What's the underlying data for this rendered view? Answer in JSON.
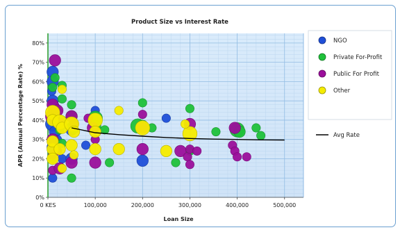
{
  "chart_data": {
    "type": "scatter",
    "subtype": "bubble",
    "title": "Product Size vs Interest Rate",
    "xlabel": "Loan Size",
    "ylabel": "APR (Annual Percentage Rate) %",
    "xlim": [
      0,
      540000
    ],
    "ylim": [
      0,
      0.85
    ],
    "x_ticks": [
      {
        "value": 0,
        "label": "0 KES"
      },
      {
        "value": 100000,
        "label": "100,000"
      },
      {
        "value": 200000,
        "label": "200,000"
      },
      {
        "value": 300000,
        "label": "300,000"
      },
      {
        "value": 400000,
        "label": "400,000"
      },
      {
        "value": 500000,
        "label": "500,000"
      }
    ],
    "y_ticks": [
      {
        "value": 0,
        "label": "0%"
      },
      {
        "value": 0.1,
        "label": "10%"
      },
      {
        "value": 0.2,
        "label": "20%"
      },
      {
        "value": 0.3,
        "label": "30%"
      },
      {
        "value": 0.4,
        "label": "40%"
      },
      {
        "value": 0.5,
        "label": "50%"
      },
      {
        "value": 0.6,
        "label": "60%"
      },
      {
        "value": 0.7,
        "label": "70%"
      },
      {
        "value": 0.8,
        "label": "80%"
      }
    ],
    "grid": true,
    "legend_position": "right",
    "series": [
      {
        "name": "NGO",
        "kind": "bubble",
        "color": "#1f4fd8",
        "points": [
          [
            10000,
            0.65,
            3
          ],
          [
            10000,
            0.6,
            3
          ],
          [
            8000,
            0.55,
            2
          ],
          [
            10000,
            0.5,
            3
          ],
          [
            12000,
            0.47,
            3
          ],
          [
            15000,
            0.43,
            3
          ],
          [
            20000,
            0.4,
            2
          ],
          [
            25000,
            0.37,
            3
          ],
          [
            10000,
            0.38,
            4
          ],
          [
            15000,
            0.34,
            3
          ],
          [
            10000,
            0.26,
            3
          ],
          [
            20000,
            0.3,
            2
          ],
          [
            10000,
            0.1,
            2
          ],
          [
            50000,
            0.35,
            3
          ],
          [
            55000,
            0.38,
            2
          ],
          [
            80000,
            0.27,
            2
          ],
          [
            100000,
            0.45,
            2
          ],
          [
            200000,
            0.19,
            3
          ],
          [
            250000,
            0.41,
            2
          ],
          [
            30000,
            0.2,
            2
          ],
          [
            50000,
            0.2,
            3
          ]
        ]
      },
      {
        "name": "Private For-Profit",
        "kind": "bubble",
        "color": "#1fc13a",
        "points": [
          [
            15000,
            0.62,
            2
          ],
          [
            10000,
            0.57,
            2
          ],
          [
            30000,
            0.58,
            2
          ],
          [
            30000,
            0.51,
            2
          ],
          [
            50000,
            0.48,
            2
          ],
          [
            20000,
            0.45,
            2
          ],
          [
            50000,
            0.42,
            3
          ],
          [
            30000,
            0.4,
            2
          ],
          [
            25000,
            0.35,
            2
          ],
          [
            15000,
            0.29,
            2
          ],
          [
            50000,
            0.37,
            2
          ],
          [
            55000,
            0.35,
            2
          ],
          [
            100000,
            0.41,
            4
          ],
          [
            100000,
            0.37,
            3
          ],
          [
            120000,
            0.35,
            2
          ],
          [
            130000,
            0.18,
            2
          ],
          [
            190000,
            0.37,
            4
          ],
          [
            200000,
            0.37,
            3
          ],
          [
            200000,
            0.49,
            2
          ],
          [
            220000,
            0.36,
            2
          ],
          [
            270000,
            0.18,
            2
          ],
          [
            300000,
            0.46,
            2
          ],
          [
            300000,
            0.24,
            2
          ],
          [
            355000,
            0.34,
            2
          ],
          [
            400000,
            0.35,
            4
          ],
          [
            405000,
            0.34,
            3
          ],
          [
            440000,
            0.36,
            2
          ],
          [
            450000,
            0.32,
            2
          ],
          [
            10000,
            0.2,
            2
          ],
          [
            50000,
            0.1,
            2
          ],
          [
            30000,
            0.28,
            2
          ]
        ]
      },
      {
        "name": "Public For Profit",
        "kind": "bubble",
        "color": "#9b0f9b",
        "points": [
          [
            15000,
            0.71,
            3
          ],
          [
            10000,
            0.48,
            3
          ],
          [
            10000,
            0.42,
            4
          ],
          [
            20000,
            0.45,
            3
          ],
          [
            25000,
            0.38,
            3
          ],
          [
            50000,
            0.42,
            3
          ],
          [
            55000,
            0.38,
            2
          ],
          [
            10000,
            0.14,
            2
          ],
          [
            25000,
            0.15,
            3
          ],
          [
            50000,
            0.18,
            3
          ],
          [
            100000,
            0.18,
            3
          ],
          [
            95000,
            0.36,
            3
          ],
          [
            100000,
            0.3,
            2
          ],
          [
            200000,
            0.36,
            3
          ],
          [
            200000,
            0.25,
            3
          ],
          [
            200000,
            0.43,
            2
          ],
          [
            280000,
            0.24,
            3
          ],
          [
            295000,
            0.21,
            2
          ],
          [
            300000,
            0.38,
            3
          ],
          [
            300000,
            0.25,
            2
          ],
          [
            300000,
            0.17,
            2
          ],
          [
            315000,
            0.24,
            2
          ],
          [
            390000,
            0.27,
            2
          ],
          [
            395000,
            0.24,
            2
          ],
          [
            400000,
            0.21,
            2
          ],
          [
            420000,
            0.21,
            2
          ],
          [
            395000,
            0.36,
            3
          ],
          [
            85000,
            0.41,
            2
          ],
          [
            10000,
            0.3,
            3
          ],
          [
            20000,
            0.24,
            2
          ],
          [
            10000,
            0.22,
            2
          ]
        ]
      },
      {
        "name": "Other",
        "kind": "bubble",
        "color": "#f5ec00",
        "points": [
          [
            10000,
            0.44,
            4
          ],
          [
            10000,
            0.4,
            3
          ],
          [
            25000,
            0.39,
            4
          ],
          [
            30000,
            0.36,
            3
          ],
          [
            50000,
            0.38,
            4
          ],
          [
            55000,
            0.34,
            3
          ],
          [
            50000,
            0.27,
            3
          ],
          [
            10000,
            0.25,
            3
          ],
          [
            10000,
            0.29,
            3
          ],
          [
            25000,
            0.25,
            3
          ],
          [
            30000,
            0.56,
            2
          ],
          [
            100000,
            0.4,
            4
          ],
          [
            100000,
            0.34,
            3
          ],
          [
            100000,
            0.25,
            3
          ],
          [
            150000,
            0.45,
            2
          ],
          [
            150000,
            0.25,
            3
          ],
          [
            200000,
            0.36,
            4
          ],
          [
            250000,
            0.24,
            3
          ],
          [
            300000,
            0.33,
            4
          ],
          [
            290000,
            0.38,
            2
          ],
          [
            10000,
            0.2,
            3
          ],
          [
            55000,
            0.22,
            2
          ],
          [
            30000,
            0.15,
            2
          ]
        ]
      },
      {
        "name": "Avg Rate",
        "kind": "line",
        "color": "#000000",
        "points": [
          [
            50000,
            0.36
          ],
          [
            80000,
            0.345
          ],
          [
            100000,
            0.335
          ],
          [
            150000,
            0.325
          ],
          [
            200000,
            0.317
          ],
          [
            250000,
            0.31
          ],
          [
            300000,
            0.305
          ],
          [
            350000,
            0.302
          ],
          [
            400000,
            0.3
          ],
          [
            450000,
            0.298
          ],
          [
            500000,
            0.297
          ]
        ]
      }
    ]
  }
}
